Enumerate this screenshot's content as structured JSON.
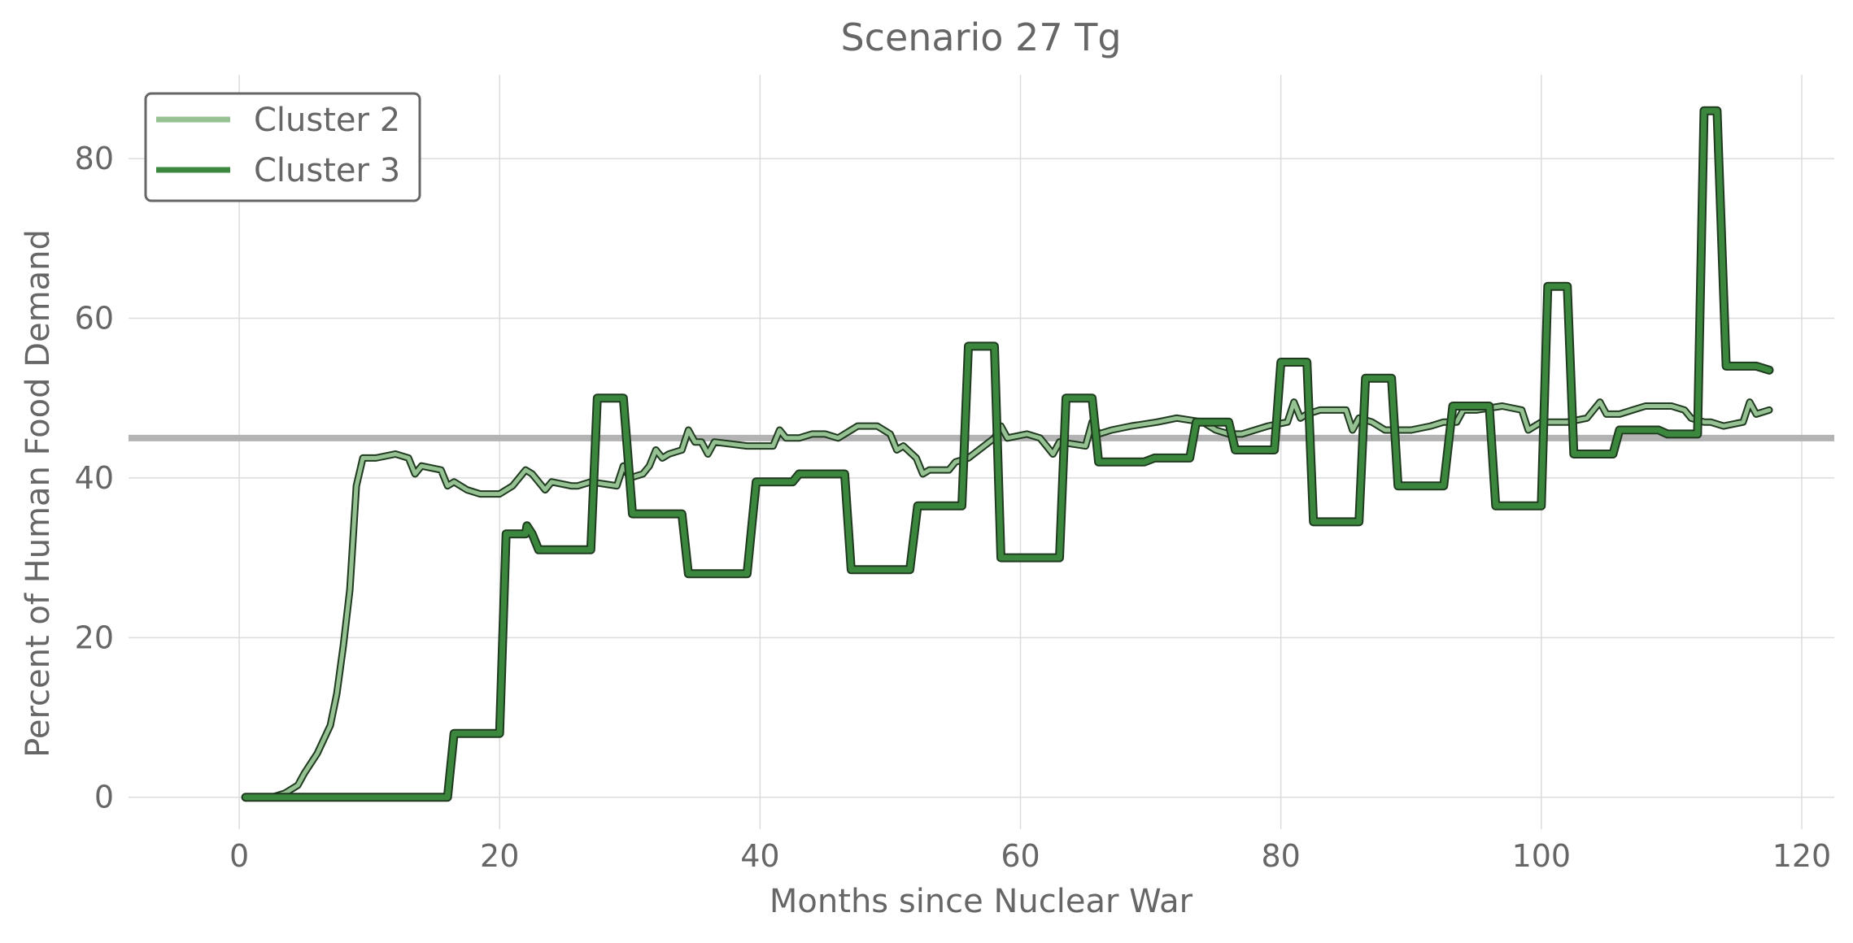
{
  "chart_data": {
    "type": "line",
    "title": "Scenario 27 Tg",
    "xlabel": "Months since Nuclear War",
    "ylabel": "Percent of Human Food Demand",
    "xlim": [
      -8.5,
      122.5
    ],
    "ylim": [
      -4,
      90.5
    ],
    "xticks": [
      0,
      20,
      40,
      60,
      80,
      100,
      120
    ],
    "yticks": [
      0,
      20,
      40,
      60,
      80
    ],
    "grid": true,
    "legend_position": "upper-left",
    "reference_line": {
      "y": 45,
      "color": "#b3b3b3"
    },
    "series": [
      {
        "name": "Cluster 2",
        "color": "#95c193",
        "points": [
          [
            0.5,
            0
          ],
          [
            2.5,
            0
          ],
          [
            3.5,
            0.5
          ],
          [
            4.5,
            1.5
          ],
          [
            5,
            3
          ],
          [
            6,
            5.5
          ],
          [
            7,
            9
          ],
          [
            7.5,
            13
          ],
          [
            8,
            19
          ],
          [
            8.5,
            26
          ],
          [
            9,
            39
          ],
          [
            9.5,
            42.5
          ],
          [
            10.5,
            42.5
          ],
          [
            12,
            43
          ],
          [
            13,
            42.5
          ],
          [
            13.5,
            40.5
          ],
          [
            14,
            41.5
          ],
          [
            15.5,
            41
          ],
          [
            16,
            39
          ],
          [
            16.5,
            39.5
          ],
          [
            17.5,
            38.5
          ],
          [
            18.5,
            38
          ],
          [
            20,
            38
          ],
          [
            21,
            39
          ],
          [
            22,
            41
          ],
          [
            22.5,
            40.5
          ],
          [
            23,
            39.5
          ],
          [
            23.5,
            38.5
          ],
          [
            24,
            39.5
          ],
          [
            25.5,
            39
          ],
          [
            26,
            39
          ],
          [
            27,
            39.5
          ],
          [
            29,
            39
          ],
          [
            29.5,
            41.5
          ],
          [
            30,
            40
          ],
          [
            31,
            40.5
          ],
          [
            31.5,
            41.5
          ],
          [
            32,
            43.5
          ],
          [
            32.5,
            42.5
          ],
          [
            33,
            43
          ],
          [
            34,
            43.5
          ],
          [
            34.5,
            46
          ],
          [
            35,
            44.5
          ],
          [
            35.5,
            44.5
          ],
          [
            36,
            43
          ],
          [
            36.5,
            44.5
          ],
          [
            39,
            44
          ],
          [
            41,
            44
          ],
          [
            41.5,
            46
          ],
          [
            42,
            45
          ],
          [
            43,
            45
          ],
          [
            44,
            45.5
          ],
          [
            45,
            45.5
          ],
          [
            46,
            45
          ],
          [
            47,
            46
          ],
          [
            47.5,
            46.5
          ],
          [
            49,
            46.5
          ],
          [
            50,
            45.5
          ],
          [
            50.5,
            43.5
          ],
          [
            51,
            44
          ],
          [
            52,
            42.5
          ],
          [
            52.5,
            40.5
          ],
          [
            53,
            41
          ],
          [
            54.5,
            41
          ],
          [
            55,
            42
          ],
          [
            56,
            42.5
          ],
          [
            58,
            45
          ],
          [
            58.5,
            46.5
          ],
          [
            59,
            45
          ],
          [
            60.5,
            45.5
          ],
          [
            61.5,
            45
          ],
          [
            62,
            44
          ],
          [
            62.5,
            43
          ],
          [
            63,
            44.5
          ],
          [
            65,
            44
          ],
          [
            65.5,
            47
          ],
          [
            66,
            45.5
          ],
          [
            67,
            46
          ],
          [
            68.5,
            46.5
          ],
          [
            70.5,
            47
          ],
          [
            72,
            47.5
          ],
          [
            74,
            47
          ],
          [
            75,
            46
          ],
          [
            76,
            45.5
          ],
          [
            77,
            45.5
          ],
          [
            79,
            46.5
          ],
          [
            80.5,
            47
          ],
          [
            81,
            49.5
          ],
          [
            81.5,
            47.5
          ],
          [
            82,
            48
          ],
          [
            83,
            48.5
          ],
          [
            85,
            48.5
          ],
          [
            85.5,
            46
          ],
          [
            86,
            47.5
          ],
          [
            87,
            47
          ],
          [
            88,
            46
          ],
          [
            89,
            46
          ],
          [
            90,
            46
          ],
          [
            91.5,
            46.5
          ],
          [
            92.5,
            47
          ],
          [
            93.5,
            47
          ],
          [
            94,
            48.5
          ],
          [
            95,
            48.5
          ],
          [
            97,
            49
          ],
          [
            98.5,
            48.5
          ],
          [
            99,
            46
          ],
          [
            100,
            47
          ],
          [
            102,
            47
          ],
          [
            103.5,
            47.5
          ],
          [
            104.5,
            49.5
          ],
          [
            105,
            48
          ],
          [
            106,
            48
          ],
          [
            107,
            48.5
          ],
          [
            108,
            49
          ],
          [
            110,
            49
          ],
          [
            111,
            48.5
          ],
          [
            111.5,
            47.5
          ],
          [
            112.5,
            47
          ],
          [
            113,
            47
          ],
          [
            114,
            46.5
          ],
          [
            115.5,
            47
          ],
          [
            116,
            49.5
          ],
          [
            116.5,
            48
          ],
          [
            117.5,
            48.5
          ]
        ]
      },
      {
        "name": "Cluster 3",
        "color": "#3b873d",
        "points": [
          [
            0.5,
            0
          ],
          [
            16,
            0
          ],
          [
            16.5,
            8
          ],
          [
            20,
            8
          ],
          [
            20.5,
            33
          ],
          [
            22,
            33
          ],
          [
            22.1,
            34
          ],
          [
            22.5,
            33
          ],
          [
            23,
            31
          ],
          [
            27,
            31
          ],
          [
            27.5,
            50
          ],
          [
            29.5,
            50
          ],
          [
            30.2,
            35.5
          ],
          [
            34,
            35.5
          ],
          [
            34.5,
            28
          ],
          [
            39,
            28
          ],
          [
            39.7,
            39.5
          ],
          [
            42.5,
            39.5
          ],
          [
            43,
            40.5
          ],
          [
            46.5,
            40.5
          ],
          [
            47,
            28.5
          ],
          [
            51.5,
            28.5
          ],
          [
            52.1,
            36.5
          ],
          [
            55.5,
            36.5
          ],
          [
            56,
            56.5
          ],
          [
            58,
            56.5
          ],
          [
            58.5,
            30
          ],
          [
            63,
            30
          ],
          [
            63.5,
            50
          ],
          [
            65.5,
            50
          ],
          [
            66,
            42
          ],
          [
            69.5,
            42
          ],
          [
            70.3,
            42.5
          ],
          [
            73,
            42.5
          ],
          [
            73.5,
            47
          ],
          [
            76,
            47
          ],
          [
            76.5,
            43.5
          ],
          [
            79.5,
            43.5
          ],
          [
            80,
            54.5
          ],
          [
            82,
            54.5
          ],
          [
            82.5,
            34.5
          ],
          [
            86,
            34.5
          ],
          [
            86.5,
            52.5
          ],
          [
            88.5,
            52.5
          ],
          [
            89,
            39
          ],
          [
            92.5,
            39
          ],
          [
            93.2,
            49
          ],
          [
            96,
            49
          ],
          [
            96.5,
            36.5
          ],
          [
            100,
            36.5
          ],
          [
            100.5,
            64
          ],
          [
            102,
            64
          ],
          [
            102.5,
            43
          ],
          [
            105.5,
            43
          ],
          [
            106,
            46
          ],
          [
            109,
            46
          ],
          [
            109.7,
            45.5
          ],
          [
            112,
            45.5
          ],
          [
            112.5,
            86
          ],
          [
            113.5,
            86
          ],
          [
            114.2,
            54
          ],
          [
            116.5,
            54
          ],
          [
            117.5,
            53.5
          ]
        ]
      }
    ]
  }
}
